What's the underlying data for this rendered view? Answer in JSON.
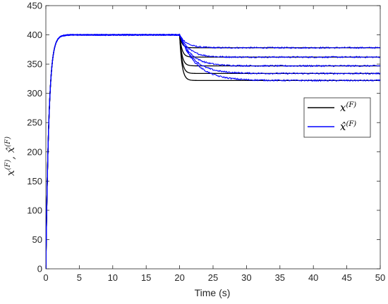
{
  "chart_data": {
    "type": "line",
    "xlabel": "Time (s)",
    "ylabel_main": "x",
    "ylabel_sup": "(F)",
    "ylabel_sep": ", ",
    "ylabel_hat": "x̂",
    "xlim": [
      0,
      50
    ],
    "ylim": [
      0,
      450
    ],
    "xticks": [
      0,
      5,
      10,
      15,
      20,
      25,
      30,
      35,
      40,
      45,
      50
    ],
    "yticks": [
      0,
      50,
      100,
      150,
      200,
      250,
      300,
      350,
      400,
      450
    ],
    "grid": false,
    "legend_position": "right",
    "legend": [
      {
        "base": "x",
        "sup": "(F)",
        "color": "#000000"
      },
      {
        "base": "x̂",
        "sup": "(F)",
        "color": "#0000ff"
      }
    ],
    "initial_value": 400,
    "switch_time": 20,
    "final_values": [
      378,
      362,
      347,
      334,
      322
    ],
    "sample_series": {
      "x": [
        0,
        1,
        2,
        3,
        20,
        21,
        25,
        30,
        50
      ],
      "actual": [
        0,
        370,
        398,
        400,
        400,
        335,
        322,
        322,
        322
      ],
      "estimate": [
        0,
        365,
        398,
        401,
        400,
        372,
        333,
        322,
        322
      ]
    },
    "colors": {
      "actual": "#000000",
      "estimate": "#0000ff",
      "axis": "#262626"
    }
  }
}
